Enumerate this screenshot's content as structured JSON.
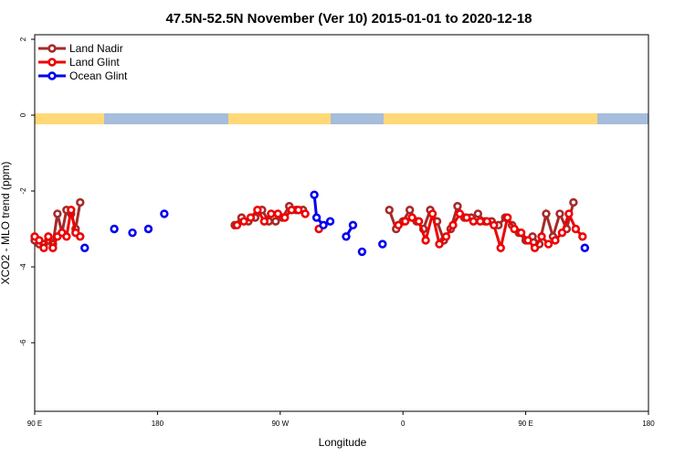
{
  "chart_data": {
    "type": "line",
    "title": "47.5N-52.5N November (Ver 10)   2015-01-01 to 2020-12-18",
    "xlabel": "Longitude",
    "ylabel": "XCO2 - MLO trend (ppm)",
    "xlim": [
      -90,
      180
    ],
    "ylim": [
      -8,
      2
    ],
    "x_ticks": [
      {
        "value": -90,
        "label": "90 E"
      },
      {
        "value": -36,
        "label": "180"
      },
      {
        "value": 18,
        "label": "90 W"
      },
      {
        "value": 72,
        "label": "0"
      },
      {
        "value": 126,
        "label": "90 E"
      },
      {
        "value": 180,
        "label": "180"
      }
    ],
    "y_ticks": [
      {
        "value": 2,
        "label": "2"
      },
      {
        "value": 0,
        "label": "0"
      },
      {
        "value": -2,
        "label": "-2"
      },
      {
        "value": -4,
        "label": "-4"
      },
      {
        "value": -6,
        "label": "-6"
      }
    ],
    "legend_position": "top-left",
    "land_mask_band": {
      "y_center": -0.1,
      "land_color": "#ffd978",
      "ocean_color": "#a6bddb"
    },
    "series": [
      {
        "name": "Land Nadir",
        "color": "#a52a2a",
        "segments": [
          [
            [
              -90,
              -3.3
            ],
            [
              -88,
              -3.4
            ],
            [
              -86,
              -3.4
            ],
            [
              -84,
              -3.3
            ],
            [
              -82,
              -3.4
            ],
            [
              -80,
              -2.6
            ],
            [
              -78,
              -3.1
            ],
            [
              -76,
              -2.5
            ],
            [
              -74,
              -2.6
            ],
            [
              -72,
              -3.0
            ],
            [
              -70,
              -2.3
            ]
          ],
          [
            [
              -2,
              -2.9
            ],
            [
              1,
              -2.7
            ],
            [
              4,
              -2.8
            ],
            [
              7,
              -2.7
            ],
            [
              10,
              -2.5
            ],
            [
              13,
              -2.8
            ],
            [
              16,
              -2.8
            ],
            [
              19,
              -2.7
            ],
            [
              22,
              -2.4
            ],
            [
              25,
              -2.5
            ],
            [
              28,
              -2.5
            ]
          ],
          [
            [
              66,
              -2.5
            ],
            [
              69,
              -3.0
            ],
            [
              72,
              -2.8
            ],
            [
              75,
              -2.5
            ],
            [
              78,
              -2.8
            ],
            [
              81,
              -3.0
            ],
            [
              84,
              -2.5
            ],
            [
              87,
              -2.8
            ],
            [
              90,
              -3.3
            ],
            [
              93,
              -3.0
            ],
            [
              96,
              -2.4
            ],
            [
              99,
              -2.7
            ],
            [
              102,
              -2.7
            ],
            [
              105,
              -2.6
            ],
            [
              108,
              -2.8
            ],
            [
              111,
              -2.8
            ],
            [
              114,
              -2.9
            ],
            [
              117,
              -2.7
            ],
            [
              120,
              -2.9
            ],
            [
              123,
              -3.1
            ],
            [
              126,
              -3.3
            ],
            [
              129,
              -3.2
            ],
            [
              132,
              -3.4
            ],
            [
              135,
              -2.6
            ],
            [
              138,
              -3.2
            ],
            [
              141,
              -2.6
            ],
            [
              144,
              -3.0
            ],
            [
              147,
              -2.3
            ]
          ]
        ]
      },
      {
        "name": "Land Glint",
        "color": "#ee0000",
        "segments": [
          [
            [
              -90,
              -3.2
            ],
            [
              -88,
              -3.3
            ],
            [
              -86,
              -3.5
            ],
            [
              -84,
              -3.2
            ],
            [
              -82,
              -3.5
            ],
            [
              -80,
              -3.2
            ],
            [
              -78,
              -3.1
            ],
            [
              -76,
              -3.2
            ],
            [
              -74,
              -2.5
            ],
            [
              -72,
              -3.1
            ],
            [
              -70,
              -3.2
            ]
          ],
          [
            [
              -1,
              -2.9
            ],
            [
              2,
              -2.8
            ],
            [
              5,
              -2.7
            ],
            [
              8,
              -2.5
            ],
            [
              11,
              -2.8
            ],
            [
              14,
              -2.6
            ],
            [
              17,
              -2.6
            ],
            [
              20,
              -2.7
            ],
            [
              23,
              -2.5
            ],
            [
              26,
              -2.5
            ],
            [
              29,
              -2.6
            ]
          ],
          [
            [
              35,
              -3.0
            ]
          ],
          [
            [
              70,
              -2.9
            ],
            [
              73,
              -2.8
            ],
            [
              76,
              -2.7
            ],
            [
              79,
              -2.8
            ],
            [
              82,
              -3.3
            ],
            [
              85,
              -2.6
            ],
            [
              88,
              -3.4
            ],
            [
              91,
              -3.2
            ],
            [
              94,
              -2.9
            ],
            [
              97,
              -2.6
            ],
            [
              100,
              -2.7
            ],
            [
              103,
              -2.8
            ],
            [
              106,
              -2.8
            ],
            [
              109,
              -2.8
            ],
            [
              112,
              -2.9
            ],
            [
              115,
              -3.5
            ],
            [
              118,
              -2.7
            ],
            [
              121,
              -3.0
            ],
            [
              124,
              -3.1
            ],
            [
              127,
              -3.3
            ],
            [
              130,
              -3.5
            ],
            [
              133,
              -3.2
            ],
            [
              136,
              -3.4
            ],
            [
              139,
              -3.3
            ],
            [
              142,
              -3.1
            ],
            [
              145,
              -2.6
            ],
            [
              148,
              -3.0
            ],
            [
              151,
              -3.2
            ]
          ]
        ]
      },
      {
        "name": "Ocean Glint",
        "color": "#0000ee",
        "segments": [
          [
            [
              -68,
              -3.5
            ]
          ],
          [
            [
              -55,
              -3.0
            ]
          ],
          [
            [
              -47,
              -3.1
            ]
          ],
          [
            [
              -40,
              -3.0
            ]
          ],
          [
            [
              -33,
              -2.6
            ]
          ],
          [
            [
              33,
              -2.1
            ],
            [
              34,
              -2.7
            ],
            [
              37,
              -2.9
            ],
            [
              40,
              -2.8
            ]
          ],
          [
            [
              47,
              -3.2
            ],
            [
              50,
              -2.9
            ]
          ],
          [
            [
              54,
              -3.6
            ]
          ],
          [
            [
              63,
              -3.4
            ]
          ],
          [
            [
              152,
              -3.5
            ]
          ]
        ]
      }
    ]
  }
}
